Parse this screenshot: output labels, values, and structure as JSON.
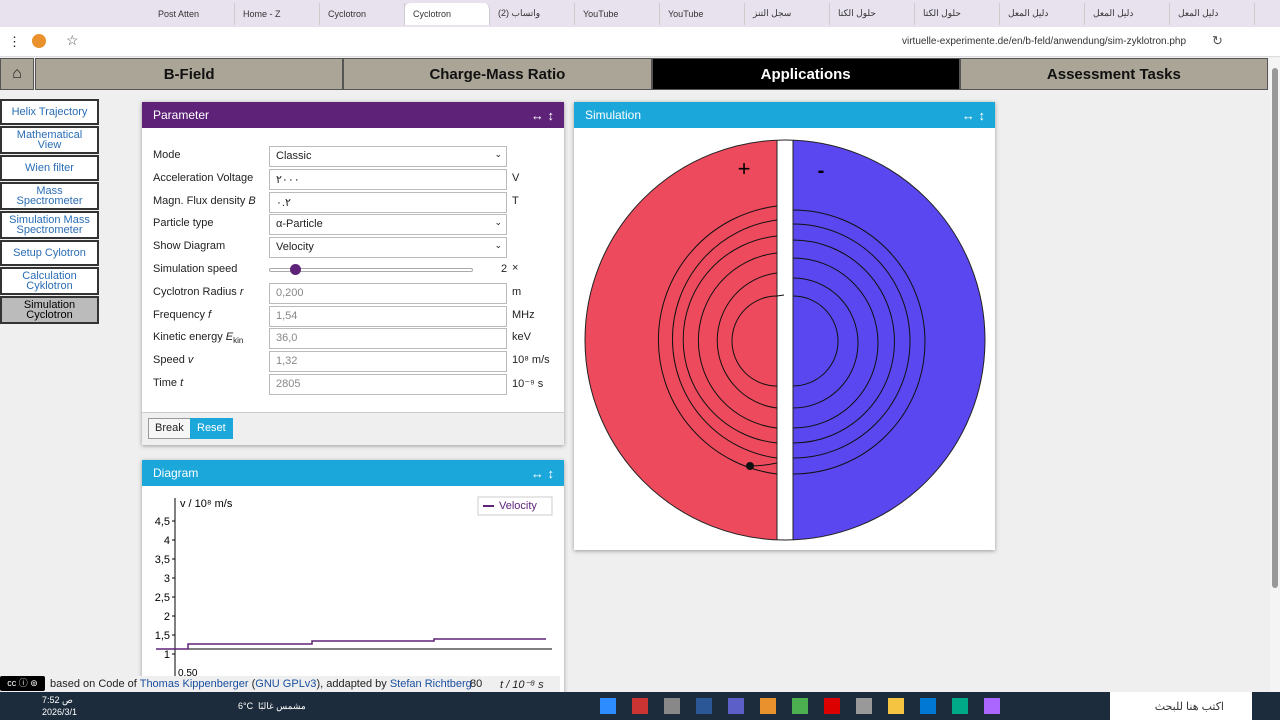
{
  "browser": {
    "tabs": [
      "Post Atten",
      "Home - Z",
      "Cyclotron",
      "Cyclotron",
      "(2) واتساب",
      "YouTube",
      "YouTube",
      "سجل التنز",
      "حلول الكتا",
      "حلول الكتا",
      "دليل المعل",
      "دليل المعل",
      "دليل المعل"
    ],
    "active_tab": 3,
    "url": "virtuelle-experimente.de/en/b-feld/anwendung/sim-zyklotron.php"
  },
  "nav": {
    "items": [
      "B-Field",
      "Charge-Mass Ratio",
      "Applications",
      "Assessment Tasks"
    ],
    "selected": 2
  },
  "sidebar": {
    "items": [
      "Helix Trajectory",
      "Mathematical View",
      "Wien filter",
      "Mass Spectrometer",
      "Simulation Mass Spectrometer",
      "Setup Cylotron",
      "Calculation Cyklotron",
      "Simulation Cyclotron"
    ],
    "selected": 7
  },
  "parameter": {
    "title": "Parameter",
    "rows": [
      {
        "label": "Mode",
        "value": "Classic",
        "kind": "select"
      },
      {
        "label": "Acceleration Voltage",
        "value": "٢٠٠٠",
        "unit": "V",
        "kind": "input"
      },
      {
        "label": "Magn. Flux density ",
        "symbol": "B",
        "value": "٠.٢",
        "unit": "T",
        "kind": "input"
      },
      {
        "label": "Particle type",
        "value": "α-Particle",
        "kind": "select"
      },
      {
        "label": "Show Diagram",
        "value": "Velocity",
        "kind": "select"
      },
      {
        "label": "Simulation speed",
        "value": "2",
        "unit": "×",
        "kind": "slider"
      },
      {
        "label": "Cyclotron Radius ",
        "symbol": "r",
        "value": "0,200",
        "unit": "m",
        "kind": "output"
      },
      {
        "label": "Frequency ",
        "symbol": "f",
        "value": "1,54",
        "unit": "MHz",
        "kind": "output"
      },
      {
        "label": "Kinetic energy ",
        "symbol": "E",
        "subscript": "kin",
        "value": "36,0",
        "unit": "keV",
        "kind": "output"
      },
      {
        "label": "Speed ",
        "symbol": "v",
        "value": "1,32",
        "unit": "10⁸ m/s",
        "kind": "output"
      },
      {
        "label": "Time ",
        "symbol": "t",
        "value": "2805",
        "unit": "10⁻⁹ s",
        "kind": "output"
      }
    ],
    "buttons": [
      "Break",
      "Reset"
    ]
  },
  "simulation": {
    "title": "Simulation",
    "plus": "+",
    "minus": "-"
  },
  "diagram": {
    "title": "Diagram",
    "y_label": "v / 10⁸ m/s",
    "y_ticks": [
      "4,5",
      "4",
      "3,5",
      "3",
      "2,5",
      "2",
      "1,5",
      "1"
    ],
    "legend": "Velocity",
    "x_label": "t / 10⁻⁸ s",
    "x_tick_first": "0.50",
    "x_tick_last": "80"
  },
  "footer": {
    "prefix": "based on Code of",
    "author": "Thomas Kippenberger",
    "license": "GNU GPLv3",
    "middle": "addapted by",
    "adapter": "Stefan Richtberg"
  },
  "taskbar": {
    "time": "7:52 ص",
    "date": "2026/3/1",
    "weather": "6°C",
    "weather_text": "مشمس غالبًا",
    "search": "اكتب هنا للبحث"
  }
}
